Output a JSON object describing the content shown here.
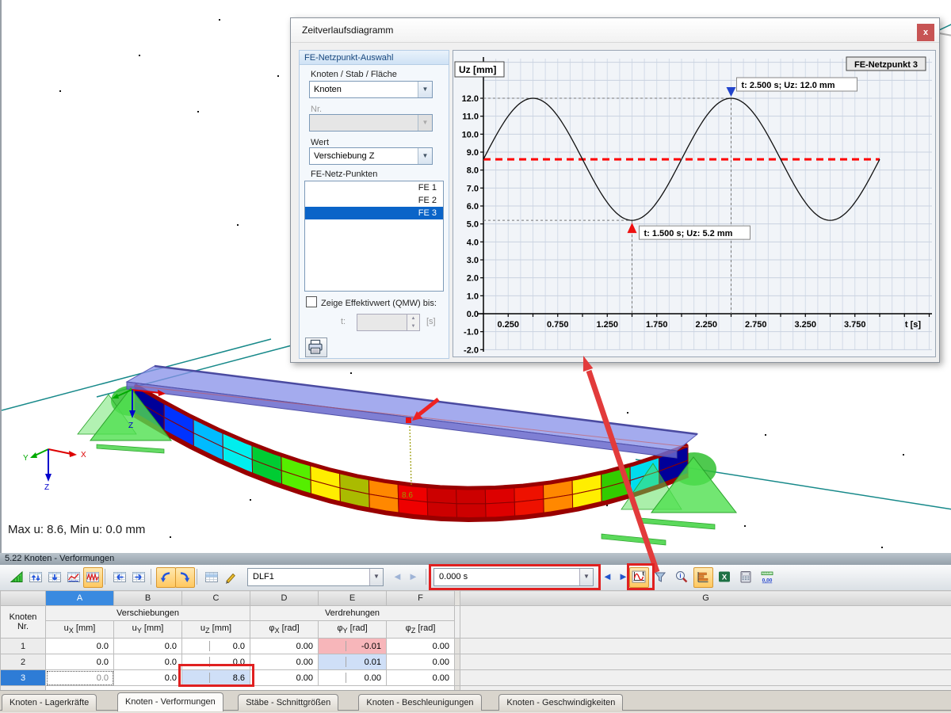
{
  "dialog": {
    "title": "Zeitverlaufsdiagramm",
    "close_label": "x",
    "panel": {
      "group_title": "FE-Netzpunkt-Auswahl",
      "object_type_label": "Knoten / Stab / Fläche",
      "object_type_value": "Knoten",
      "number_label": "Nr.",
      "number_value": "",
      "value_label": "Wert",
      "value_value": "Verschiebung Z",
      "list_label": "FE-Netz-Punkten",
      "list_items": [
        "FE 1",
        "FE 2",
        "FE 3"
      ],
      "list_selected_index": 2,
      "checkbox_label": "Zeige Effektivwert (QMW) bis:",
      "t_label": "t:",
      "t_unit": "[s]"
    }
  },
  "chart_data": {
    "type": "line",
    "title_box": "FE-Netzpunkt 3",
    "ylabel": "Uz [mm]",
    "xlabel": "t [s]",
    "x_ticks": [
      0.25,
      0.75,
      1.25,
      1.75,
      2.25,
      2.75,
      3.25,
      3.75
    ],
    "y_ticks": [
      12,
      11,
      10,
      9,
      8,
      7,
      6,
      5,
      4,
      3,
      2,
      1,
      0,
      -1,
      -2
    ],
    "xlim": [
      0,
      4.5
    ],
    "ylim": [
      -2.4,
      14.3
    ],
    "grid": true,
    "legend_position": "none",
    "series": [
      {
        "name": "Uz FE-Netzpunkt 3",
        "model": "sine",
        "mean_mm": 8.6,
        "amplitude_mm": 3.4,
        "period_s": 2.0,
        "t_start_s": 0.0,
        "t_end_s": 4.0
      }
    ],
    "reference_line": {
      "value_mm": 8.6,
      "color": "#ff0000",
      "style": "dashed"
    },
    "annotations": [
      {
        "t_s": 2.5,
        "uz_mm": 12.0,
        "label": "t: 2.500 s; Uz: 12.0 mm",
        "marker": "triangle-down",
        "marker_color": "#2244cc"
      },
      {
        "t_s": 1.5,
        "uz_mm": 5.2,
        "label": "t: 1.500 s; Uz: 5.2 mm",
        "marker": "triangle-up",
        "marker_color": "#ee1111"
      }
    ]
  },
  "scene": {
    "status_text": "Max u: 8.6, Min u: 0.0 mm",
    "node_value_label": "8.6",
    "triad_labels": {
      "x": "X",
      "y": "Y",
      "z": "Z"
    },
    "support_z_label": "Z",
    "deformation_colors": [
      "#000099",
      "#0033ff",
      "#00bbff",
      "#00eeee",
      "#00cc33",
      "#55ee00",
      "#ffee00",
      "#aabb00",
      "#ff8800",
      "#ee0000",
      "#cc0000",
      "#cc0000",
      "#dd0000",
      "#ee1100",
      "#ff8800",
      "#ffee00",
      "#33cc00",
      "#00ddee",
      "#000099"
    ],
    "undeformed_color": "#8890e8",
    "support_color": "#44dd44"
  },
  "bottom_panel": {
    "title": "5.22 Knoten - Verformungen",
    "toolbar": {
      "groups_left": [
        [
          "results-panel",
          "table-sort",
          "table-filter",
          "table-diagram",
          "table-time-course"
        ],
        [
          "table-previous",
          "table-next"
        ],
        [
          "undo",
          "redo"
        ],
        [
          "table-view",
          "edit-mode"
        ]
      ],
      "highlighted": [
        "table-time-course",
        "undo",
        "redo",
        "time-history-diagram",
        "result-bars"
      ],
      "loadcase_combo_value": "DLF1",
      "time_combo_value": "0.000 s",
      "icons_right": [
        "time-history-diagram",
        "filter",
        "result-info",
        "result-bars",
        "excel",
        "calculator",
        "decimal-places"
      ]
    },
    "table": {
      "corner_top": "Knoten",
      "corner_bottom": "Nr.",
      "col_letters": [
        "A",
        "B",
        "C",
        "D",
        "E",
        "F",
        "G"
      ],
      "selected_letter": "A",
      "group_displacements": "Verschiebungen",
      "group_rotations": "Verdrehungen",
      "columns": [
        {
          "sym": "u",
          "sub": "X",
          "unit": "[mm]"
        },
        {
          "sym": "u",
          "sub": "Y",
          "unit": "[mm]"
        },
        {
          "sym": "u",
          "sub": "Z",
          "unit": "[mm]"
        },
        {
          "sym": "φ",
          "sub": "X",
          "unit": "[rad]"
        },
        {
          "sym": "φ",
          "sub": "Y",
          "unit": "[rad]"
        },
        {
          "sym": "φ",
          "sub": "Z",
          "unit": "[rad]"
        }
      ],
      "rows": [
        {
          "nr": "1",
          "values": [
            "0.0",
            "0.0",
            "0.0",
            "0.00",
            "-0.01",
            "0.00"
          ],
          "highlights": {
            "4": "pink"
          },
          "selected": false
        },
        {
          "nr": "2",
          "values": [
            "0.0",
            "0.0",
            "0.0",
            "0.00",
            "0.01",
            "0.00"
          ],
          "highlights": {
            "4": "lblue"
          },
          "selected": false
        },
        {
          "nr": "3",
          "values": [
            "0.0",
            "0.0",
            "8.6",
            "0.00",
            "0.00",
            "0.00"
          ],
          "highlights": {
            "2": "lblue"
          },
          "selected": true,
          "focus_cell": 0
        }
      ]
    },
    "tabs": [
      "Knoten - Lagerkräfte",
      "Knoten - Verformungen",
      "Stäbe - Schnittgrößen",
      "Knoten - Beschleunigungen",
      "Knoten - Geschwindigkeiten"
    ],
    "active_tab_index": 1
  }
}
